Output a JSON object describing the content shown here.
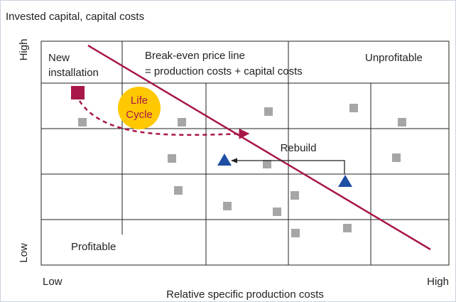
{
  "title": "Invested capital, capital costs",
  "y_axis": {
    "high": "High",
    "low": "Low"
  },
  "x_axis": {
    "low": "Low",
    "high": "High",
    "label": "Relative specific production costs"
  },
  "cells": {
    "new_installation": [
      "New",
      "installation"
    ],
    "break_even": [
      "Break-even price line",
      "= production costs + capital costs"
    ],
    "unprofitable": "Unprofitable",
    "profitable": "Profitable"
  },
  "life_cycle": [
    "Life",
    "Cycle"
  ],
  "rebuild": "Rebuild"
}
